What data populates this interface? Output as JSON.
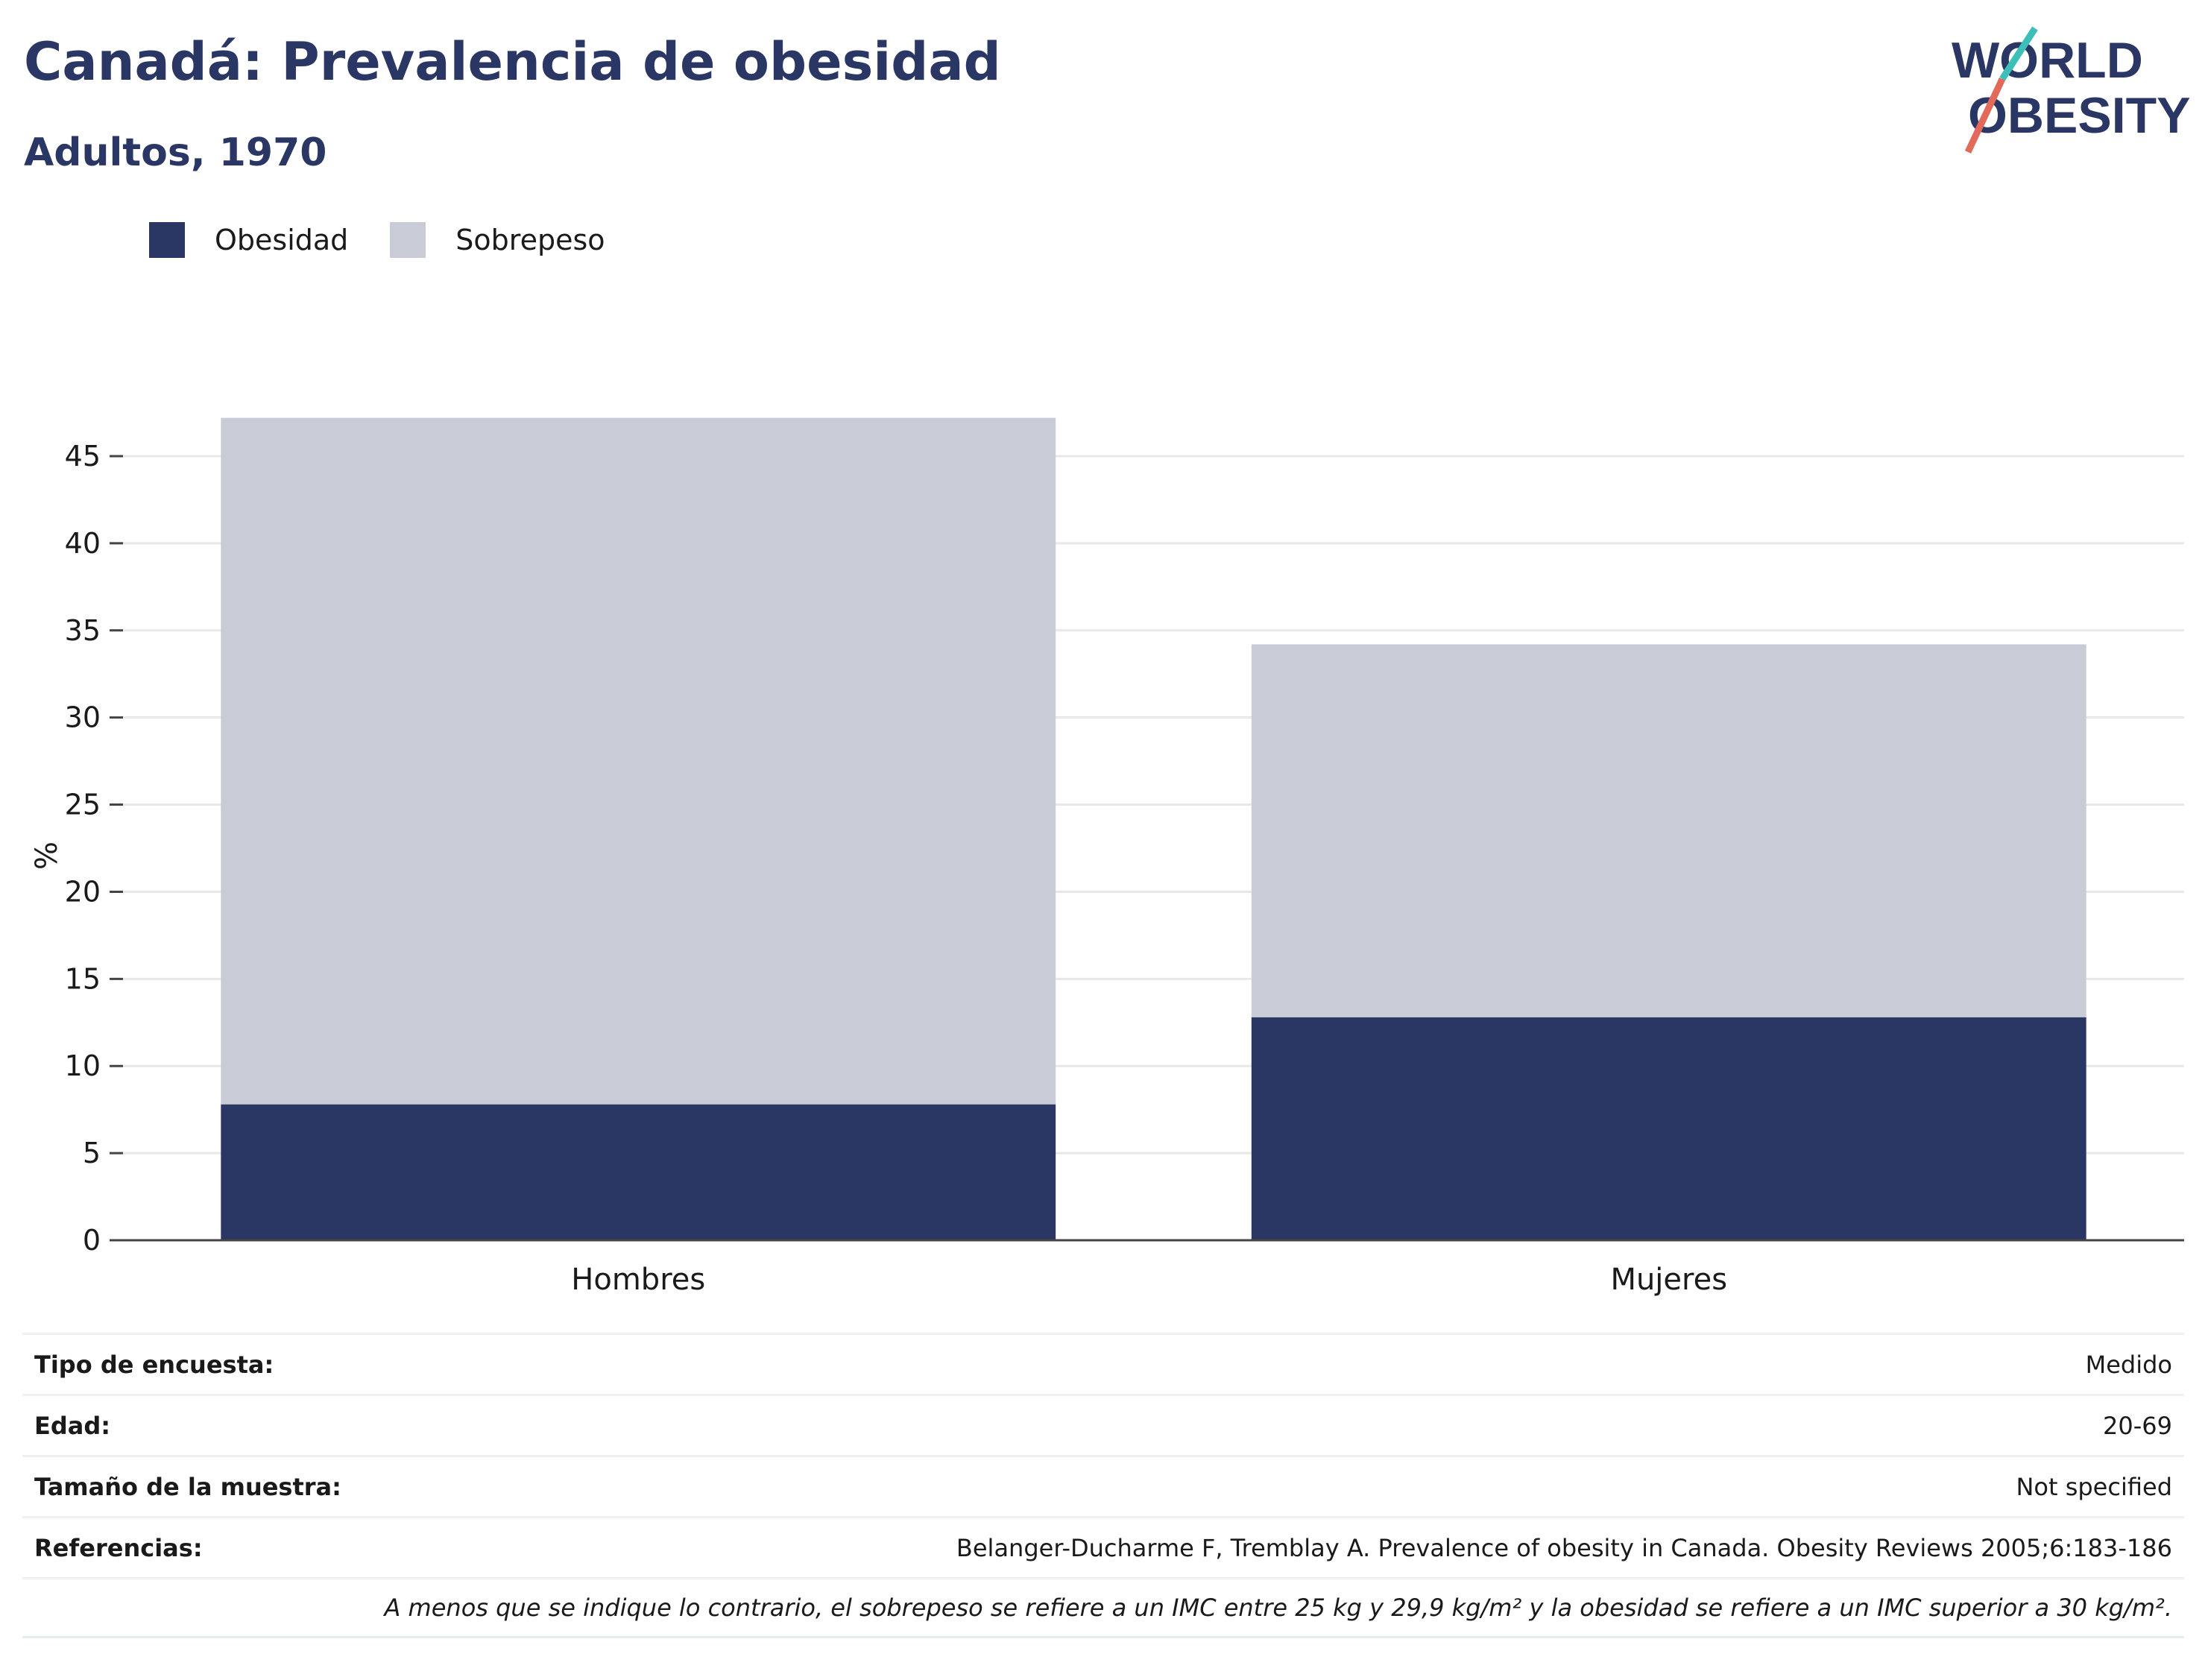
{
  "title": "Canadá: Prevalencia de obesidad",
  "subtitle": "Adultos, 1970",
  "logo": {
    "line1": "WORLD",
    "line2": "OBESITY"
  },
  "legend": [
    {
      "label": "Obesidad",
      "color": "#2a3664"
    },
    {
      "label": "Sobrepeso",
      "color": "#c9cbd7"
    }
  ],
  "chart_data": {
    "type": "bar",
    "stacked": true,
    "categories": [
      "Hombres",
      "Mujeres"
    ],
    "series": [
      {
        "name": "Obesidad",
        "values": [
          7.8,
          12.8
        ],
        "color": "#2a3664"
      },
      {
        "name": "Sobrepeso",
        "values": [
          39.4,
          21.4
        ],
        "color": "#c9cbd7"
      }
    ],
    "ylabel": "%",
    "xlabel": "",
    "ylim": [
      0,
      47.2
    ],
    "yticks": [
      0,
      5,
      10,
      15,
      20,
      25,
      30,
      35,
      40,
      45
    ],
    "grid": true,
    "legend_position": "top-left"
  },
  "meta": {
    "survey_type_label": "Tipo de encuesta:",
    "survey_type_value": "Medido",
    "age_label": "Edad:",
    "age_value": "20-69",
    "sample_label": "Tamaño de la muestra:",
    "sample_value": "Not specified",
    "refs_label": "Referencias:",
    "refs_value": "Belanger-Ducharme F, Tremblay A. Prevalence of obesity in Canada. Obesity Reviews 2005;6:183-186",
    "note": "A menos que se indique lo contrario, el sobrepeso se refiere a un IMC entre 25 kg y 29,9 kg/m² y la obesidad se refiere a un IMC superior a 30 kg/m²."
  }
}
